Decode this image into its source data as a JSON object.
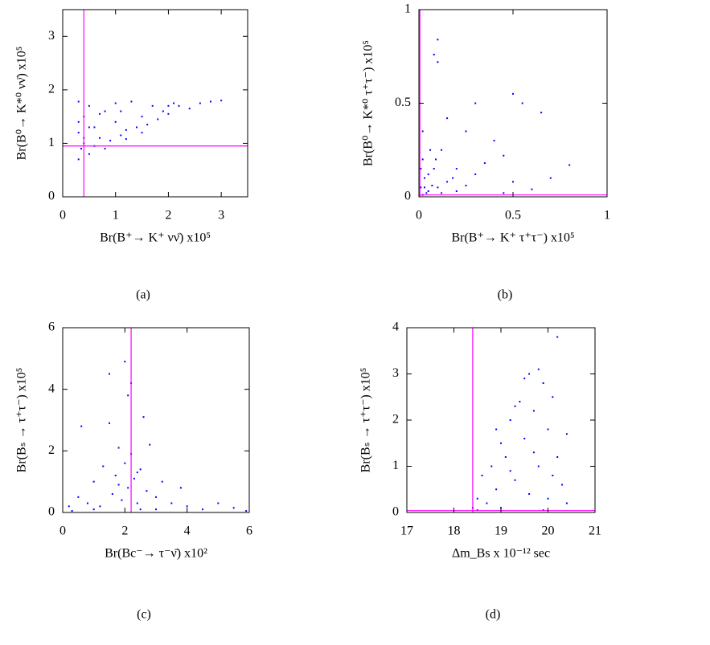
{
  "chart_data": [
    {
      "type": "scatter",
      "label": "(a)",
      "x_label": "Br(B⁺→ K⁺ νν̄) x10⁵",
      "y_label": "Br(B⁰→ K*⁰ νν̄) x10⁵",
      "xlim": [
        0,
        3.5
      ],
      "ylim": [
        0,
        3.5
      ],
      "xticks": [
        0,
        1,
        2,
        3
      ],
      "yticks": [
        0,
        1,
        2,
        3
      ],
      "color": "#0000ff",
      "ref_color": "#ff00ff",
      "ref_x": [
        0.4
      ],
      "ref_y": [
        0.95
      ],
      "x": [
        0.3,
        0.3,
        0.3,
        0.35,
        0.4,
        0.4,
        0.5,
        0.5,
        0.6,
        0.6,
        0.7,
        0.8,
        0.9,
        1.0,
        1.0,
        1.1,
        1.2,
        1.3,
        1.4,
        1.5,
        1.6,
        1.7,
        1.8,
        1.9,
        2.0,
        2.1,
        2.2,
        2.4,
        2.6,
        2.8,
        3.0,
        0.3,
        0.5,
        0.8,
        1.2,
        1.5,
        2.0,
        0.4,
        0.7,
        1.1
      ],
      "y": [
        0.7,
        1.2,
        1.78,
        0.9,
        1.5,
        1.0,
        0.8,
        1.7,
        1.3,
        0.95,
        1.1,
        1.6,
        1.05,
        1.4,
        1.75,
        1.15,
        1.25,
        1.78,
        1.3,
        1.5,
        1.35,
        1.7,
        1.45,
        1.6,
        1.55,
        1.75,
        1.7,
        1.65,
        1.75,
        1.78,
        1.8,
        1.4,
        1.3,
        0.9,
        1.08,
        1.2,
        1.7,
        1.1,
        1.55,
        1.6
      ]
    },
    {
      "type": "scatter",
      "label": "(b)",
      "x_label": "Br(B⁺→ K⁺ τ⁺τ⁻) x10⁵",
      "y_label": "Br(B⁰→ K*⁰ τ⁺τ⁻) x10⁵",
      "xlim": [
        0,
        1
      ],
      "ylim": [
        0,
        1
      ],
      "xticks": [
        0,
        0.5,
        1
      ],
      "yticks": [
        0,
        0.5,
        1
      ],
      "color": "#0000ff",
      "ref_color": "#ff00ff",
      "ref_x": [
        0.005
      ],
      "ref_y": [
        0.01
      ],
      "x": [
        0.01,
        0.02,
        0.03,
        0.05,
        0.02,
        0.08,
        0.1,
        0.04,
        0.12,
        0.15,
        0.2,
        0.25,
        0.3,
        0.1,
        0.08,
        0.1,
        0.35,
        0.4,
        0.45,
        0.5,
        0.55,
        0.6,
        0.65,
        0.8,
        0.05,
        0.07,
        0.09,
        0.2,
        0.3,
        0.15,
        0.5,
        0.02,
        0.03,
        0.25,
        0.45,
        0.7,
        0.01,
        0.06,
        0.18,
        0.12
      ],
      "y": [
        0.05,
        0.2,
        0.1,
        0.03,
        0.35,
        0.15,
        0.05,
        0.02,
        0.25,
        0.08,
        0.03,
        0.35,
        0.12,
        0.84,
        0.76,
        0.72,
        0.18,
        0.3,
        0.22,
        0.55,
        0.5,
        0.04,
        0.45,
        0.17,
        0.12,
        0.06,
        0.2,
        0.15,
        0.5,
        0.42,
        0.08,
        0.01,
        0.05,
        0.06,
        0.02,
        0.1,
        0.15,
        0.25,
        0.1,
        0.02
      ]
    },
    {
      "type": "scatter",
      "label": "(c)",
      "x_label": "Br(Bc⁻→ τ⁻ν̄) x10²",
      "y_label": "Br(Bₛ → τ⁺τ⁻) x10⁵",
      "xlim": [
        0,
        6
      ],
      "ylim": [
        0,
        6
      ],
      "xticks": [
        0,
        2,
        4,
        6
      ],
      "yticks": [
        0,
        2,
        4,
        6
      ],
      "color": "#0000ff",
      "ref_color": "#ff00ff",
      "ref_x": [
        2.2
      ],
      "ref_y": [],
      "x": [
        0.2,
        0.5,
        0.6,
        0.8,
        1.0,
        1.2,
        1.3,
        1.5,
        1.6,
        1.7,
        1.8,
        1.9,
        2.0,
        2.0,
        2.1,
        2.1,
        2.2,
        2.2,
        2.3,
        2.4,
        2.5,
        2.6,
        2.7,
        2.8,
        3.0,
        3.2,
        3.5,
        3.8,
        4.0,
        4.5,
        5.0,
        5.5,
        5.9,
        1.5,
        1.0,
        2.5,
        3.0,
        1.8,
        2.4,
        0.3
      ],
      "y": [
        0.2,
        0.5,
        2.8,
        0.3,
        1.0,
        0.2,
        1.5,
        2.9,
        0.6,
        1.2,
        2.1,
        0.4,
        1.6,
        4.9,
        0.8,
        3.8,
        1.9,
        4.2,
        1.1,
        0.3,
        1.4,
        3.1,
        0.7,
        2.2,
        0.5,
        1.0,
        0.3,
        0.8,
        0.2,
        0.1,
        0.3,
        0.15,
        0.05,
        4.5,
        0.1,
        0.1,
        0.1,
        0.9,
        1.3,
        0.05
      ]
    },
    {
      "type": "scatter",
      "label": "(d)",
      "x_label": "Δm_Bs x 10⁻¹² sec",
      "y_label": "Br(Bₛ → τ⁺τ⁻) x10⁵",
      "xlim": [
        17,
        21
      ],
      "ylim": [
        0,
        4
      ],
      "xticks": [
        17,
        18,
        19,
        20,
        21
      ],
      "yticks": [
        0,
        1,
        2,
        3,
        4
      ],
      "color": "#0000ff",
      "ref_color": "#ff00ff",
      "ref_x": [
        18.4
      ],
      "ref_y": [
        0.04
      ],
      "x": [
        18.4,
        18.5,
        18.6,
        18.7,
        18.8,
        18.9,
        19.0,
        19.0,
        19.1,
        19.2,
        19.3,
        19.4,
        19.5,
        19.5,
        19.6,
        19.6,
        19.7,
        19.8,
        19.8,
        19.9,
        20.0,
        20.0,
        20.1,
        20.2,
        20.2,
        20.3,
        20.4,
        18.5,
        19.2,
        19.7,
        20.4,
        18.9,
        19.3,
        20.1,
        19.9
      ],
      "y": [
        0.1,
        0.3,
        0.8,
        0.2,
        1.0,
        0.5,
        1.5,
        0.1,
        1.2,
        2.0,
        0.7,
        2.4,
        1.6,
        2.9,
        0.4,
        3.0,
        2.2,
        3.1,
        1.0,
        2.8,
        1.8,
        0.3,
        2.5,
        3.8,
        1.2,
        0.6,
        1.7,
        0.05,
        0.9,
        1.3,
        0.2,
        1.8,
        2.3,
        0.8,
        0.05
      ]
    }
  ]
}
